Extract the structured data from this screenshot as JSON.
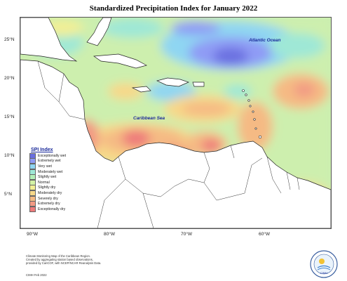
{
  "title": "Standardized Precipitation Index for January 2022",
  "labels": {
    "atlantic": "Atlantic Ocean",
    "caribbean": "Caribbean Sea"
  },
  "y_axis_ticks": [
    "25°N",
    "20°N",
    "15°N",
    "10°N",
    "5°N"
  ],
  "x_axis_ticks": [
    "90°W",
    "80°W",
    "70°W",
    "60°W"
  ],
  "legend": {
    "title": "SPI Index",
    "items": [
      {
        "label": "Exceptionally wet",
        "color": "#6a6fe0"
      },
      {
        "label": "Extremely wet",
        "color": "#8f9bf5"
      },
      {
        "label": "Very wet",
        "color": "#8fd6f2"
      },
      {
        "label": "Moderately wet",
        "color": "#9fe8d6"
      },
      {
        "label": "Slightly wet",
        "color": "#b3f0b8"
      },
      {
        "label": "Normal",
        "color": "#d3f2a5"
      },
      {
        "label": "Slightly dry",
        "color": "#f2ef94"
      },
      {
        "label": "Moderately dry",
        "color": "#f7d889"
      },
      {
        "label": "Severely dry",
        "color": "#f5ba84"
      },
      {
        "label": "Extremely dry",
        "color": "#f29a84"
      },
      {
        "label": "Exceptionally dry",
        "color": "#ee7a7a"
      }
    ]
  },
  "footer": {
    "line1": "Climate Monitoring Map of the Caribbean Region.",
    "line2": "Created by aggregating station based observations,",
    "line3": "provided by CariCOF, with NCEP/NCAR Reanalysis Data.",
    "credit": "CIMH Feb 2022"
  },
  "logo_text": "CIMH"
}
